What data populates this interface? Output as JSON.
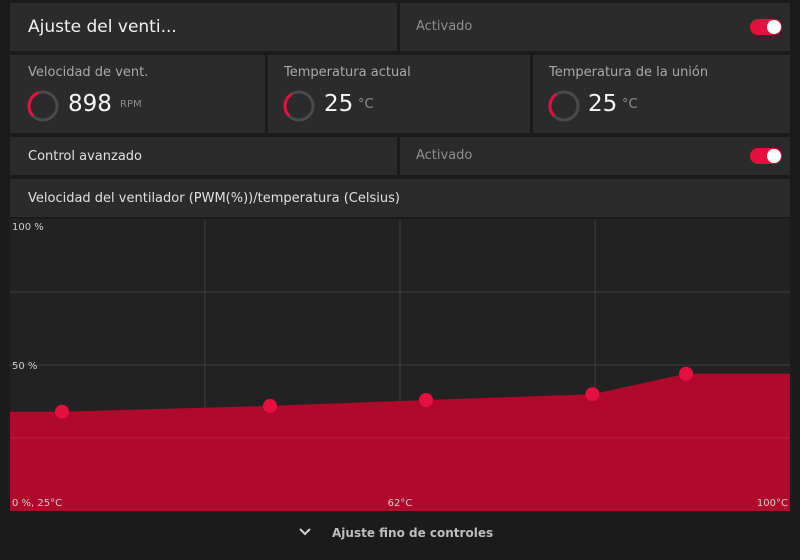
{
  "header": {
    "title": "Ajuste del venti...",
    "enabled_label": "Activado"
  },
  "stats": {
    "fan_speed": {
      "label": "Velocidad de vent.",
      "value": "898",
      "unit": "RPM",
      "level": 0.3
    },
    "current_temp": {
      "label": "Temperatura actual",
      "value": "25",
      "unit": "°C",
      "level": 0.25
    },
    "junction_temp": {
      "label": "Temperatura de la unión",
      "value": "25",
      "unit": "°C",
      "level": 0.25
    }
  },
  "advanced": {
    "label": "Control avanzado",
    "enabled_label": "Activado"
  },
  "chart_section": {
    "title": "Velocidad del ventilador (PWM(%))/temperatura (Celsius)"
  },
  "chart_data": {
    "type": "area",
    "title": "Velocidad del ventilador (PWM(%))/temperatura (Celsius)",
    "xlabel": "",
    "ylabel": "",
    "xlim": [
      25,
      100
    ],
    "ylim": [
      0,
      100
    ],
    "y_tick_labels": [
      "100 %",
      "50 %",
      "0 %, 25°C"
    ],
    "x_tick_labels": [
      "62°C",
      "100°C"
    ],
    "points": [
      {
        "x": 30,
        "y": 34
      },
      {
        "x": 50,
        "y": 36
      },
      {
        "x": 65,
        "y": 38
      },
      {
        "x": 81,
        "y": 40
      },
      {
        "x": 90,
        "y": 47
      }
    ],
    "series_color": "#b0092c",
    "point_color": "#e5103e",
    "grid": true
  },
  "footer": {
    "label": "Ajuste fino de controles"
  },
  "colors": {
    "accent": "#e5103e",
    "panel": "#2b2b2c",
    "background": "#1b1b1c"
  }
}
